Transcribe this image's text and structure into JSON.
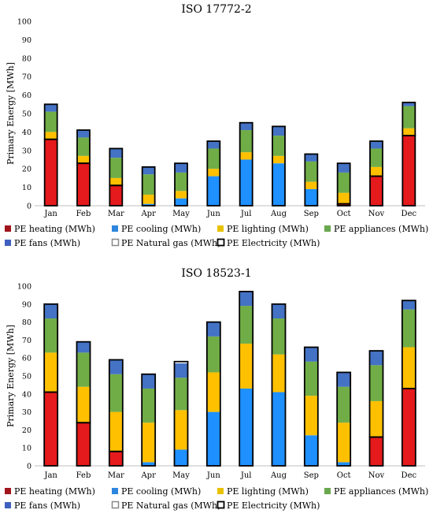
{
  "chart_data": [
    {
      "type": "bar",
      "stacked": true,
      "title": "ISO 17772-2",
      "ylabel": "Primary Energy [MWh]",
      "ylim": [
        0,
        100
      ],
      "yticks": [
        0,
        10,
        20,
        30,
        40,
        50,
        60,
        70,
        80,
        90,
        100
      ],
      "categories": [
        "Jan",
        "Feb",
        "Mar",
        "Apr",
        "May",
        "Jun",
        "Jul",
        "Aug",
        "Sep",
        "Oct",
        "Nov",
        "Dec"
      ],
      "series": [
        {
          "name": "PE heating (MWh)",
          "color": "#E41A1C",
          "values": [
            36,
            23,
            11,
            0,
            0,
            0,
            0,
            0,
            0,
            1,
            16,
            38
          ]
        },
        {
          "name": "PE cooling (MWh)",
          "color": "#1E90FF",
          "values": [
            0,
            0,
            0,
            1,
            4,
            16,
            25,
            23,
            9,
            0,
            0,
            0
          ]
        },
        {
          "name": "PE lighting (MWh)",
          "color": "#FFC000",
          "values": [
            4,
            4,
            4,
            5,
            4,
            4,
            4,
            4,
            4,
            6,
            5,
            4
          ]
        },
        {
          "name": "PE  appliances (MWh)",
          "color": "#70AD47",
          "values": [
            11,
            10,
            11,
            11,
            10,
            11,
            12,
            11,
            11,
            11,
            10,
            12
          ]
        },
        {
          "name": "PE fans (MWh)",
          "color": "#4472C4",
          "values": [
            4,
            4,
            5,
            4,
            5,
            4,
            4,
            5,
            4,
            5,
            4,
            2
          ]
        }
      ],
      "outlines": {
        "PE Natural gas (MWh)": [
          0,
          0,
          0,
          0,
          0,
          0,
          0,
          0,
          0,
          0,
          0,
          0
        ],
        "PE Electricity (MWh)": [
          55,
          41,
          31,
          21,
          23,
          35,
          45,
          43,
          28,
          23,
          35,
          56
        ]
      },
      "gas_outline_height": [
        36,
        23,
        11,
        0,
        0,
        0,
        0,
        0,
        0,
        1,
        16,
        38
      ],
      "legend": {
        "row1": [
          "PE heating (MWh)",
          "PE cooling (MWh)",
          "PE lighting (MWh)",
          "PE  appliances (MWh)"
        ],
        "row2": [
          "PE fans (MWh)",
          "PE Natural gas (MWh)",
          "PE Electricity (MWh)"
        ]
      }
    },
    {
      "type": "bar",
      "stacked": true,
      "title": "ISO 18523-1",
      "ylabel": "Primary Energy [MWh]",
      "ylim": [
        0,
        100
      ],
      "yticks": [
        0,
        10,
        20,
        30,
        40,
        50,
        60,
        70,
        80,
        90,
        100
      ],
      "categories": [
        "Jan",
        "Feb",
        "Mar",
        "Apr",
        "May",
        "Jun",
        "Jul",
        "Aug",
        "Sep",
        "Oct",
        "Nov",
        "Dec"
      ],
      "series": [
        {
          "name": "PE heating (MWh)",
          "color": "#E41A1C",
          "values": [
            41,
            24,
            8,
            0,
            0,
            0,
            0,
            0,
            0,
            0,
            16,
            43
          ]
        },
        {
          "name": "PE cooling (MWh)",
          "color": "#1E90FF",
          "values": [
            0,
            0,
            0,
            2,
            9,
            30,
            43,
            41,
            17,
            2,
            0,
            0
          ]
        },
        {
          "name": "PE lighting (MWh)",
          "color": "#FFC000",
          "values": [
            22,
            20,
            22,
            22,
            22,
            22,
            25,
            21,
            22,
            22,
            20,
            23
          ]
        },
        {
          "name": "PE  appliances (MWh)",
          "color": "#70AD47",
          "values": [
            19,
            19,
            21,
            19,
            18,
            20,
            21,
            20,
            19,
            20,
            20,
            21
          ]
        },
        {
          "name": "PE fans (MWh)",
          "color": "#4472C4",
          "values": [
            8,
            6,
            8,
            8,
            8,
            8,
            8,
            8,
            8,
            8,
            8,
            5
          ]
        }
      ],
      "outlines": {
        "PE Electricity (MWh)": [
          90,
          69,
          59,
          51,
          58,
          80,
          97,
          90,
          66,
          52,
          64,
          92
        ]
      },
      "gas_outline_height": [
        41,
        24,
        8,
        0,
        0,
        0,
        0,
        0,
        0,
        0,
        16,
        43
      ],
      "legend": {
        "row1": [
          "PE heating (MWh)",
          "PE cooling (MWh)",
          "PE lighting (MWh)",
          "PE  appliances (MWh)"
        ],
        "row2": [
          "PE fans (MWh)",
          "PE Natural gas (MWh)",
          "PE Electricity (MWh)"
        ]
      }
    }
  ],
  "legend_colors": {
    "PE heating (MWh)": "#A0141C",
    "PE cooling (MWh)": "#2E86DE",
    "PE lighting (MWh)": "#E8C200",
    "PE  appliances (MWh)": "#6AA84F",
    "PE fans (MWh)": "#4060C0",
    "PE Natural gas (MWh)": "outline-gray",
    "PE Electricity (MWh)": "outline-black"
  }
}
